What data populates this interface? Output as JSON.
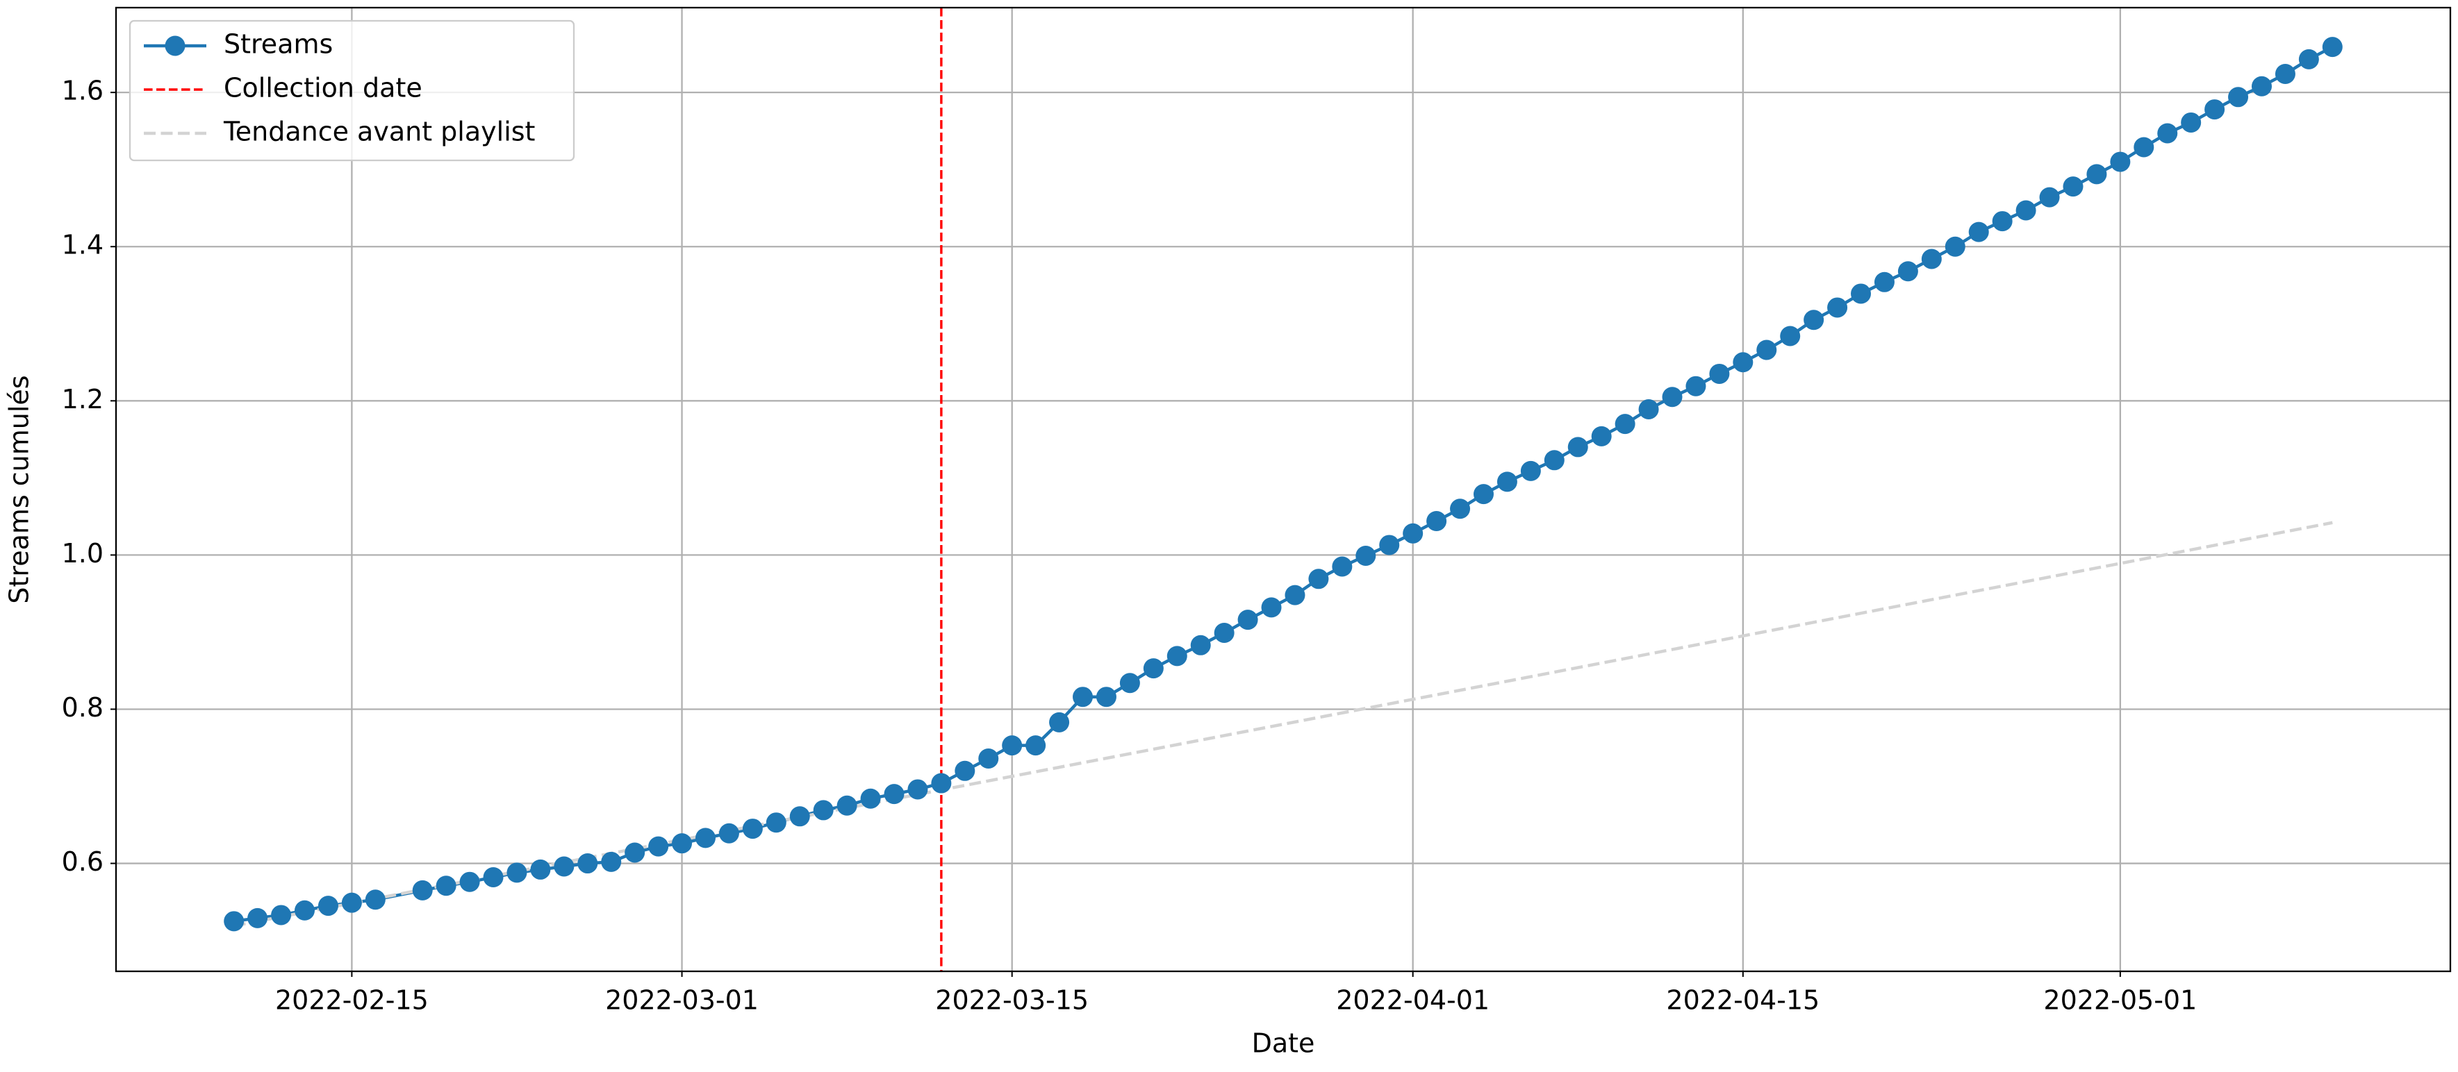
{
  "chart_data": {
    "type": "line",
    "xlabel": "Date",
    "ylabel": "Streams cumulés",
    "xlim": [
      "2022-02-05",
      "2022-05-15"
    ],
    "xticks": [
      "2022-02-15",
      "2022-03-01",
      "2022-03-15",
      "2022-04-01",
      "2022-04-15",
      "2022-05-01"
    ],
    "ylim": [
      0.46,
      1.71
    ],
    "yticks": [
      0.6,
      0.8,
      1.0,
      1.2,
      1.4,
      1.6
    ],
    "grid": true,
    "legend": "upper left",
    "series": [
      {
        "name": "Streams",
        "color": "#1f77b4",
        "marker": true,
        "dashed": false,
        "x": [
          "2022-02-10",
          "2022-02-11",
          "2022-02-12",
          "2022-02-13",
          "2022-02-14",
          "2022-02-15",
          "2022-02-16",
          "2022-02-18",
          "2022-02-19",
          "2022-02-20",
          "2022-02-21",
          "2022-02-22",
          "2022-02-23",
          "2022-02-24",
          "2022-02-25",
          "2022-02-26",
          "2022-02-27",
          "2022-02-28",
          "2022-03-01",
          "2022-03-02",
          "2022-03-03",
          "2022-03-04",
          "2022-03-05",
          "2022-03-06",
          "2022-03-07",
          "2022-03-08",
          "2022-03-09",
          "2022-03-10",
          "2022-03-11",
          "2022-03-12",
          "2022-03-13",
          "2022-03-14",
          "2022-03-15",
          "2022-03-16",
          "2022-03-17",
          "2022-03-18",
          "2022-03-19",
          "2022-03-20",
          "2022-03-21",
          "2022-03-22",
          "2022-03-23",
          "2022-03-24",
          "2022-03-25",
          "2022-03-26",
          "2022-03-27",
          "2022-03-28",
          "2022-03-29",
          "2022-03-30",
          "2022-03-31",
          "2022-04-01",
          "2022-04-02",
          "2022-04-03",
          "2022-04-04",
          "2022-04-05",
          "2022-04-06",
          "2022-04-07",
          "2022-04-08",
          "2022-04-09",
          "2022-04-10",
          "2022-04-11",
          "2022-04-12",
          "2022-04-13",
          "2022-04-14",
          "2022-04-15",
          "2022-04-16",
          "2022-04-17",
          "2022-04-18",
          "2022-04-19",
          "2022-04-20",
          "2022-04-21",
          "2022-04-22",
          "2022-04-23",
          "2022-04-24",
          "2022-04-25",
          "2022-04-26",
          "2022-04-27",
          "2022-04-28",
          "2022-04-29",
          "2022-04-30",
          "2022-05-01",
          "2022-05-02",
          "2022-05-03",
          "2022-05-04",
          "2022-05-05",
          "2022-05-06",
          "2022-05-07",
          "2022-05-08",
          "2022-05-09",
          "2022-05-10"
        ],
        "values": [
          0.525,
          0.529,
          0.533,
          0.539,
          0.545,
          0.549,
          0.553,
          0.565,
          0.571,
          0.576,
          0.582,
          0.588,
          0.592,
          0.596,
          0.6,
          0.602,
          0.614,
          0.622,
          0.626,
          0.633,
          0.639,
          0.645,
          0.653,
          0.661,
          0.669,
          0.675,
          0.684,
          0.69,
          0.696,
          0.704,
          0.72,
          0.736,
          0.753,
          0.753,
          0.783,
          0.816,
          0.816,
          0.834,
          0.853,
          0.869,
          0.883,
          0.899,
          0.916,
          0.932,
          0.948,
          0.969,
          0.985,
          0.999,
          1.013,
          1.028,
          1.044,
          1.06,
          1.079,
          1.095,
          1.109,
          1.123,
          1.14,
          1.154,
          1.17,
          1.189,
          1.205,
          1.219,
          1.235,
          1.25,
          1.266,
          1.284,
          1.305,
          1.321,
          1.339,
          1.354,
          1.368,
          1.384,
          1.4,
          1.419,
          1.433,
          1.447,
          1.464,
          1.478,
          1.494,
          1.51,
          1.529,
          1.547,
          1.561,
          1.578,
          1.594,
          1.608,
          1.624,
          1.643,
          1.659
        ]
      },
      {
        "name": "Tendance avant playlist",
        "color": "#d3d3d3",
        "marker": false,
        "dashed": true,
        "x": [
          "2022-02-10",
          "2022-05-10"
        ],
        "values": [
          0.519,
          1.042
        ]
      }
    ],
    "vlines": [
      {
        "name": "Collection date",
        "color": "#ff0000",
        "x": "2022-03-12"
      }
    ]
  }
}
